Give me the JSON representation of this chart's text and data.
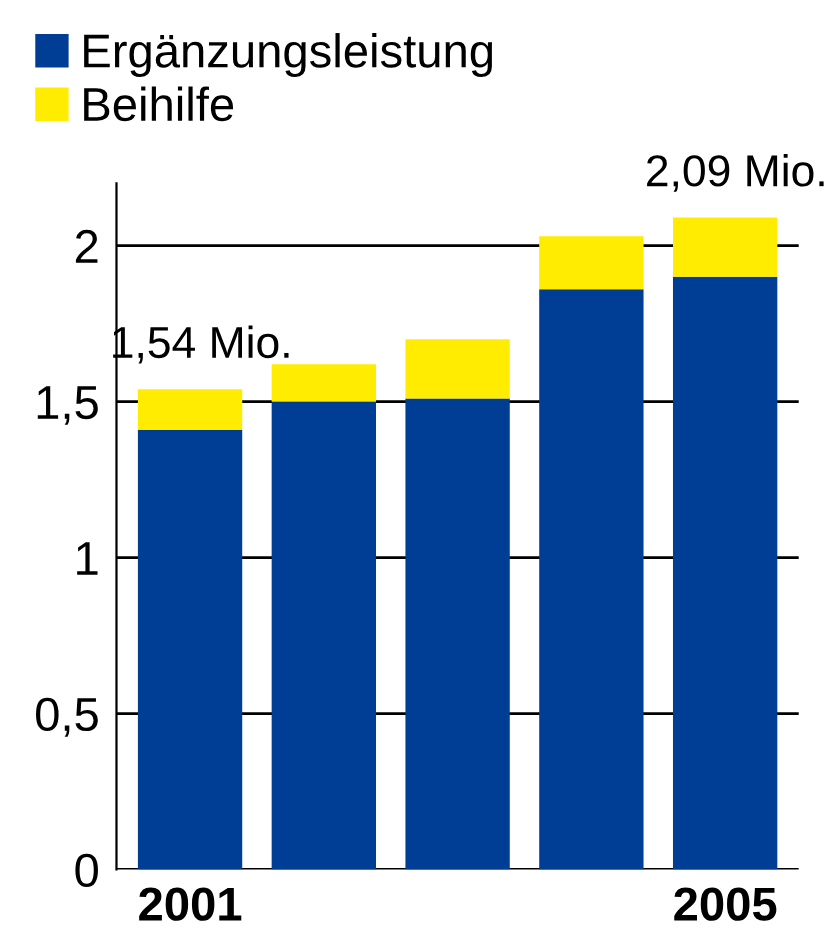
{
  "chart_data": {
    "type": "bar",
    "stacked": true,
    "categories": [
      "2001",
      null,
      null,
      null,
      "2005"
    ],
    "series": [
      {
        "name": "Ergänzungsleistung",
        "color": "#003e96",
        "values": [
          1.41,
          1.5,
          1.51,
          1.86,
          1.9
        ]
      },
      {
        "name": "Beihilfe",
        "color": "#ffec00",
        "values": [
          0.13,
          0.12,
          0.19,
          0.17,
          0.19
        ]
      }
    ],
    "ylim": [
      0,
      2.2
    ],
    "yticks": [
      0,
      {
        "value": 0.5,
        "label": "0,5"
      },
      1,
      {
        "value": 1.5,
        "label": "1,5"
      },
      2
    ],
    "grid": "y",
    "legend": "top left",
    "annotations": [
      {
        "text": "1,54 Mio.",
        "x": "2001",
        "y": 1.54
      },
      {
        "text": "2,09 Mio.",
        "x": "2005",
        "y": 2.09
      }
    ]
  }
}
